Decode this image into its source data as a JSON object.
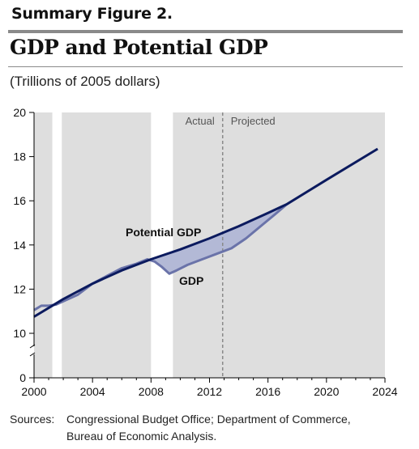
{
  "header": {
    "figure_label": "Summary Figure 2.",
    "title": "GDP and Potential GDP",
    "subtitle": "(Trillions of 2005 dollars)"
  },
  "footer": {
    "sources_label": "Sources:",
    "sources_line1": "Congressional Budget Office; Department of Commerce,",
    "sources_line2": "Bureau of Economic Analysis."
  },
  "colors": {
    "recession_shade": "#dedede",
    "gap_fill": "#b3b9d6",
    "potential_line": "#0b1a5e",
    "gdp_line": "#6a73a9",
    "axis": "#000000",
    "divider": "#8a8a8a"
  },
  "chart_data": {
    "type": "line",
    "xlim": [
      2000,
      2024
    ],
    "ylim": [
      0,
      20
    ],
    "axis_break": [
      0,
      10
    ],
    "x_ticks": [
      "2000",
      "2004",
      "2008",
      "2012",
      "2016",
      "2020",
      "2024"
    ],
    "y_ticks": [
      "0",
      "10",
      "12",
      "14",
      "16",
      "18",
      "20"
    ],
    "shaded_periods": [
      {
        "start": 2000.0,
        "end": 2001.25
      },
      {
        "start": 2001.9,
        "end": 2008.0
      },
      {
        "start": 2009.5,
        "end": 2024.0
      }
    ],
    "actual_projected_divider": 2012.9,
    "region_labels": {
      "actual": "Actual",
      "projected": "Projected"
    },
    "series": [
      {
        "name": "Potential GDP",
        "x": [
          2000,
          2002,
          2004,
          2006,
          2008,
          2010,
          2012,
          2014,
          2016,
          2017.3,
          2020,
          2023.5
        ],
        "y": [
          10.75,
          11.55,
          12.25,
          12.85,
          13.35,
          13.8,
          14.3,
          14.85,
          15.45,
          15.85,
          16.95,
          18.35
        ]
      },
      {
        "name": "GDP",
        "x": [
          2000,
          2000.5,
          2001,
          2001.5,
          2002,
          2003,
          2004,
          2005,
          2006,
          2007,
          2007.75,
          2008.25,
          2008.75,
          2009.25,
          2009.75,
          2010.5,
          2011.5,
          2012.5,
          2013.5,
          2014.5,
          2015.5,
          2016.5,
          2017.3
        ],
        "y": [
          11.05,
          11.25,
          11.25,
          11.3,
          11.45,
          11.75,
          12.25,
          12.6,
          12.95,
          13.15,
          13.35,
          13.25,
          13.0,
          12.7,
          12.85,
          13.1,
          13.35,
          13.6,
          13.85,
          14.3,
          14.85,
          15.4,
          15.85
        ]
      }
    ],
    "series_labels": [
      "Potential GDP",
      "GDP"
    ]
  }
}
